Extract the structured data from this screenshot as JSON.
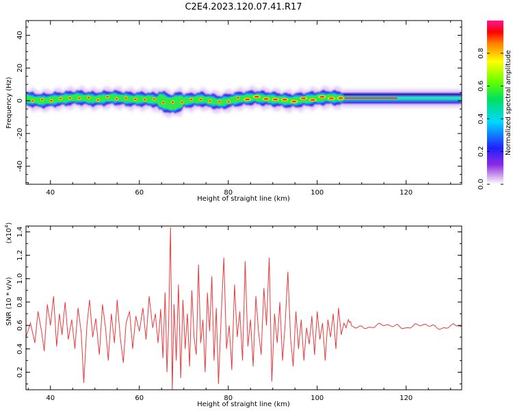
{
  "figure": {
    "title": "C2E4.2023.120.07.41.R17"
  },
  "colorbar": {
    "label": "Normalized spectral amplitude",
    "ticks": [
      "0.0",
      "0.2",
      "0.4",
      "0.6",
      "0.8"
    ],
    "tick_values": [
      0.0,
      0.2,
      0.4,
      0.6,
      0.8
    ],
    "range": [
      0,
      1
    ]
  },
  "chart_data": [
    {
      "type": "heatmap",
      "title": "",
      "xlabel": "Height of straight line (km)",
      "ylabel": "Frequency (Hz)",
      "xlim": [
        34.5,
        132.5
      ],
      "ylim": [
        -51,
        49
      ],
      "xticks": [
        40,
        60,
        80,
        100,
        120
      ],
      "yticks": [
        40,
        20,
        0,
        -20,
        -40
      ],
      "colorscale": "rainbow",
      "description_band": {
        "center_frequency": 1.5,
        "x_start": 34.5,
        "noisy_section_end": 106,
        "peak_frequency_points": [
          [
            35,
            1
          ],
          [
            38,
            0
          ],
          [
            42,
            1
          ],
          [
            46,
            2
          ],
          [
            50,
            1
          ],
          [
            54,
            2
          ],
          [
            58,
            1
          ],
          [
            62,
            1
          ],
          [
            65,
            0
          ],
          [
            67,
            -2
          ],
          [
            70,
            0
          ],
          [
            74,
            1
          ],
          [
            78,
            -1
          ],
          [
            82,
            1
          ],
          [
            86,
            2
          ],
          [
            90,
            1
          ],
          [
            94,
            0
          ],
          [
            98,
            1
          ],
          [
            102,
            2
          ],
          [
            106,
            1.5
          ],
          [
            132.5,
            1.5
          ]
        ]
      }
    },
    {
      "type": "line",
      "title": "",
      "xlabel": "Height of straight line (km)",
      "ylabel": "SNR (10 * v/v)",
      "scale_note": "(x10",
      "scale_exp": "4",
      "xlim": [
        34.5,
        132.5
      ],
      "ylim": [
        0.05,
        1.45
      ],
      "xticks": [
        40,
        60,
        80,
        100,
        120
      ],
      "yticks": [
        "0.2",
        "0.4",
        "0.6",
        "0.8",
        "1.0",
        "1.2",
        "1.4"
      ],
      "ytick_values": [
        0.2,
        0.4,
        0.6,
        0.8,
        1.0,
        1.2,
        1.4
      ],
      "series": [
        {
          "color": "#e8383c",
          "x": [
            34.5,
            35.5,
            36.5,
            37.2,
            38,
            38.6,
            39.3,
            40,
            40.7,
            41.4,
            42,
            42.6,
            43.3,
            44,
            44.8,
            45.5,
            46.2,
            46.9,
            47.5,
            48.2,
            48.8,
            49.5,
            50.2,
            51,
            51.7,
            52.4,
            53,
            53.7,
            54.4,
            55,
            55.7,
            56.4,
            57,
            57.8,
            58.5,
            59.2,
            60,
            60.8,
            61.5,
            62.2,
            63,
            63.6,
            64.2,
            64.8,
            65.3,
            65.8,
            66.2,
            66.6,
            67,
            67.4,
            67.8,
            68.3,
            68.8,
            69.3,
            69.8,
            70.3,
            70.8,
            71.3,
            71.8,
            72.3,
            72.8,
            73.3,
            73.8,
            74.3,
            74.8,
            75.3,
            75.8,
            76.3,
            76.8,
            77.3,
            77.8,
            78.4,
            79,
            79.6,
            80.2,
            80.8,
            81.4,
            82,
            82.6,
            83.2,
            83.8,
            84.4,
            85,
            85.6,
            86.2,
            86.8,
            87.4,
            88,
            88.6,
            89.2,
            89.8,
            90.4,
            91,
            91.6,
            92.2,
            92.8,
            93.4,
            94,
            94.6,
            95.2,
            95.8,
            96.4,
            97,
            97.6,
            98.2,
            98.8,
            99.4,
            100,
            100.6,
            101.2,
            101.8,
            102.4,
            103,
            103.6,
            104.2,
            104.8,
            105.4,
            106,
            106.5,
            107,
            108,
            110,
            112,
            114,
            116,
            118,
            120,
            122,
            124,
            126,
            128,
            130,
            132.5
          ],
          "y": [
            0.5,
            0.62,
            0.45,
            0.72,
            0.55,
            0.38,
            0.78,
            0.6,
            0.85,
            0.42,
            0.7,
            0.52,
            0.8,
            0.48,
            0.65,
            0.4,
            0.75,
            0.55,
            0.11,
            0.6,
            0.82,
            0.5,
            0.66,
            0.35,
            0.78,
            0.58,
            0.3,
            0.7,
            0.45,
            0.82,
            0.5,
            0.28,
            0.62,
            0.72,
            0.4,
            0.68,
            0.55,
            0.75,
            0.48,
            0.85,
            0.58,
            0.7,
            0.45,
            0.74,
            0.32,
            0.88,
            0.2,
            0.62,
            1.44,
            0.05,
            0.78,
            0.3,
            0.95,
            0.15,
            0.82,
            0.4,
            0.7,
            0.25,
            0.9,
            0.5,
            0.35,
            1.12,
            0.45,
            0.65,
            0.2,
            0.88,
            0.55,
            1.02,
            0.3,
            0.75,
            0.1,
            0.68,
            1.18,
            0.4,
            0.6,
            0.22,
            0.95,
            0.5,
            0.72,
            0.3,
            1.15,
            0.42,
            0.65,
            0.25,
            0.85,
            0.55,
            0.35,
            0.92,
            0.6,
            1.18,
            0.12,
            0.7,
            0.45,
            0.8,
            0.3,
            0.62,
            1.06,
            0.5,
            0.25,
            0.72,
            0.4,
            0.65,
            0.3,
            0.58,
            0.44,
            0.68,
            0.35,
            0.72,
            0.48,
            0.62,
            0.3,
            0.65,
            0.5,
            0.7,
            0.4,
            0.75,
            0.52,
            0.62,
            0.58,
            0.65,
            0.59,
            0.6,
            0.58,
            0.6,
            0.59,
            0.61,
            0.58,
            0.6,
            0.59,
            0.6,
            0.58,
            0.6,
            0.59
          ]
        }
      ]
    }
  ]
}
